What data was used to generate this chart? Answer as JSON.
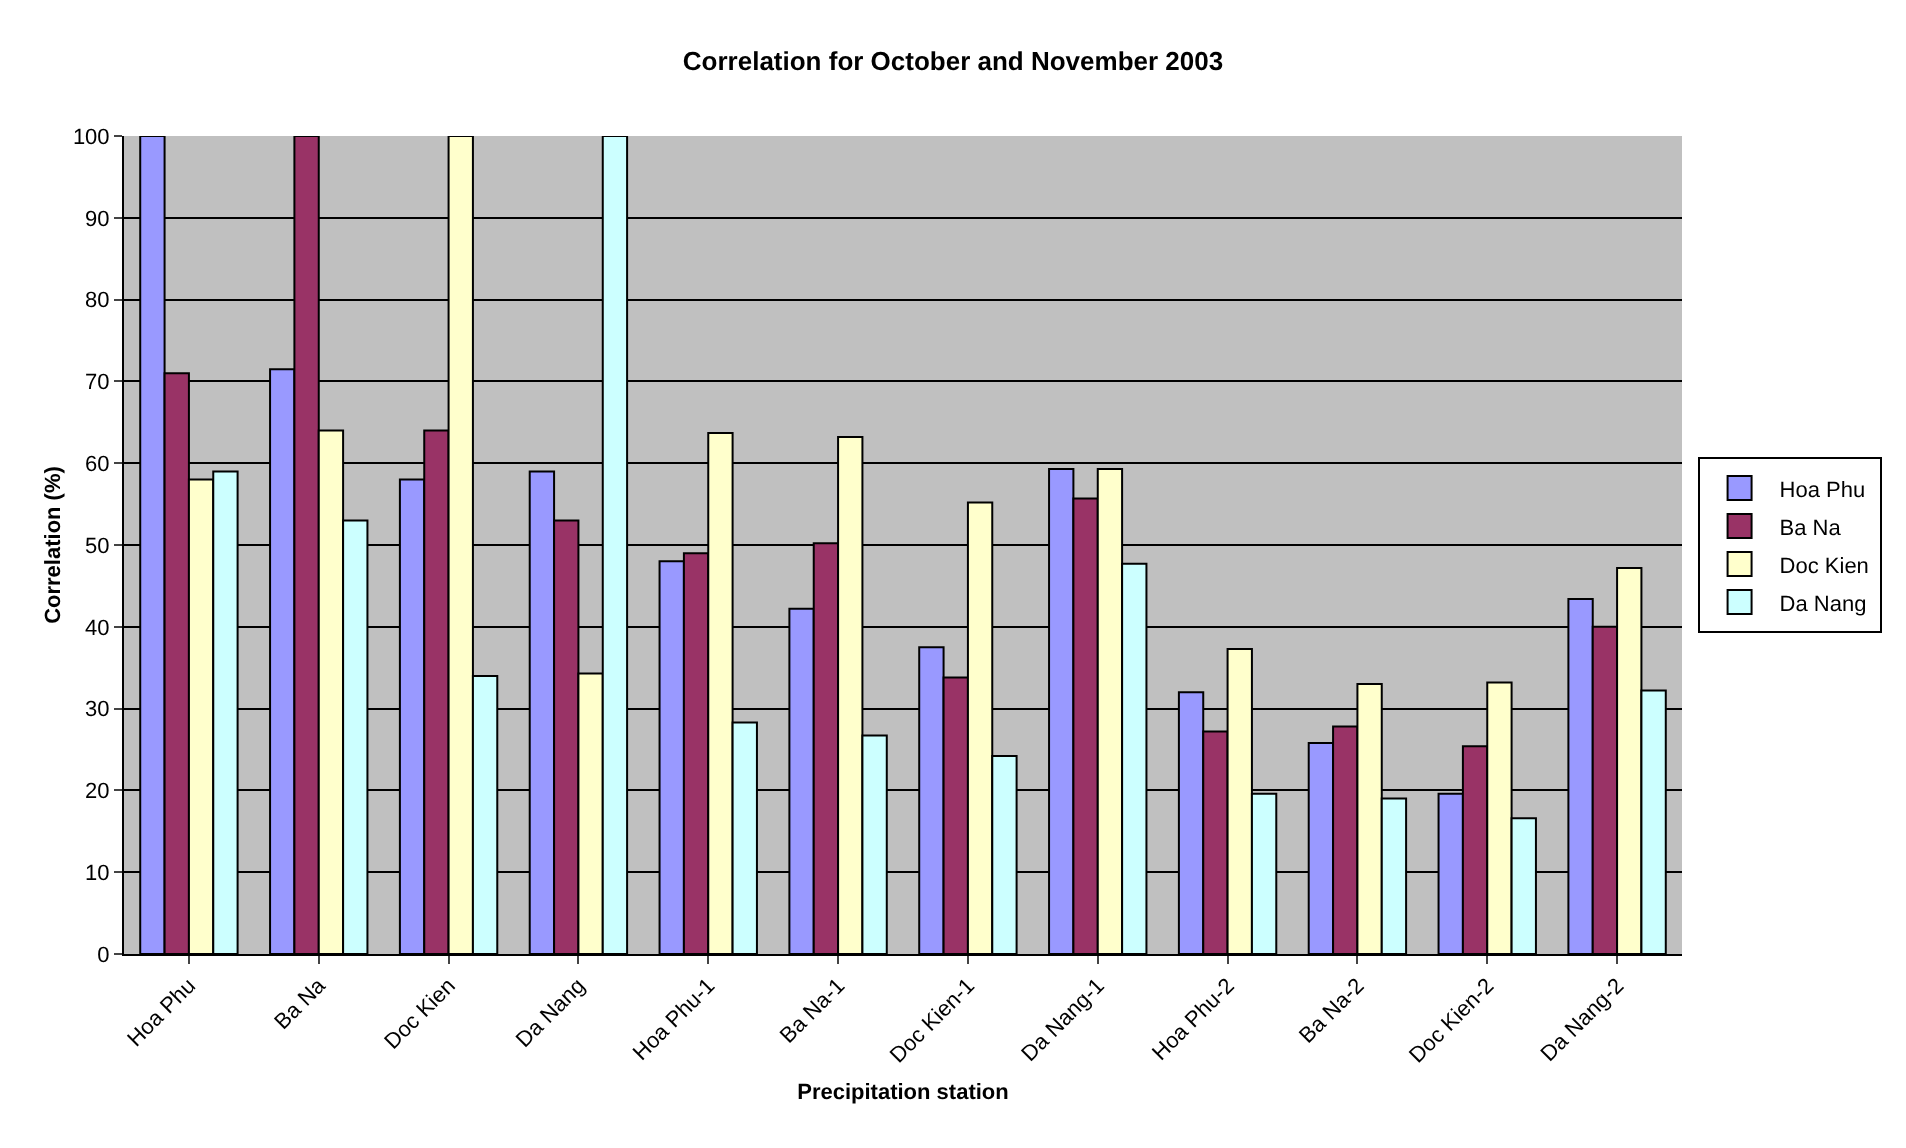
{
  "chart_data": {
    "type": "bar",
    "title": "Correlation for October and November 2003",
    "xlabel": "Precipitation station",
    "ylabel": "Correlation (%)",
    "categories": [
      "Hoa Phu",
      "Ba Na",
      "Doc Kien",
      "Da Nang",
      "Hoa Phu-1",
      "Ba Na-1",
      "Doc Kien-1",
      "Da Nang-1",
      "Hoa Phu-2",
      "Ba Na-2",
      "Doc Kien-2",
      "Da Nang-2"
    ],
    "series": [
      {
        "name": "Hoa Phu",
        "color": "#9999ff",
        "values": [
          100,
          71.5,
          58,
          59,
          48,
          42.2,
          37.5,
          59.3,
          32,
          25.8,
          19.6,
          43.4
        ]
      },
      {
        "name": "Ba Na",
        "color": "#993366",
        "values": [
          71,
          100,
          64,
          53,
          49,
          50.2,
          33.8,
          55.7,
          27.2,
          27.8,
          25.4,
          40
        ]
      },
      {
        "name": "Doc Kien",
        "color": "#ffffcc",
        "values": [
          58,
          64,
          100,
          34.3,
          63.7,
          63.2,
          55.2,
          59.3,
          37.3,
          33,
          33.2,
          47.2
        ]
      },
      {
        "name": "Da Nang",
        "color": "#ccffff",
        "values": [
          59,
          53,
          34,
          100,
          28.3,
          26.7,
          24.2,
          47.7,
          19.6,
          19,
          16.6,
          32.2
        ]
      }
    ],
    "ylim": [
      0,
      100
    ],
    "yticks": [
      0,
      10,
      20,
      30,
      40,
      50,
      60,
      70,
      80,
      90,
      100
    ],
    "grid": "y",
    "legend": "right"
  }
}
